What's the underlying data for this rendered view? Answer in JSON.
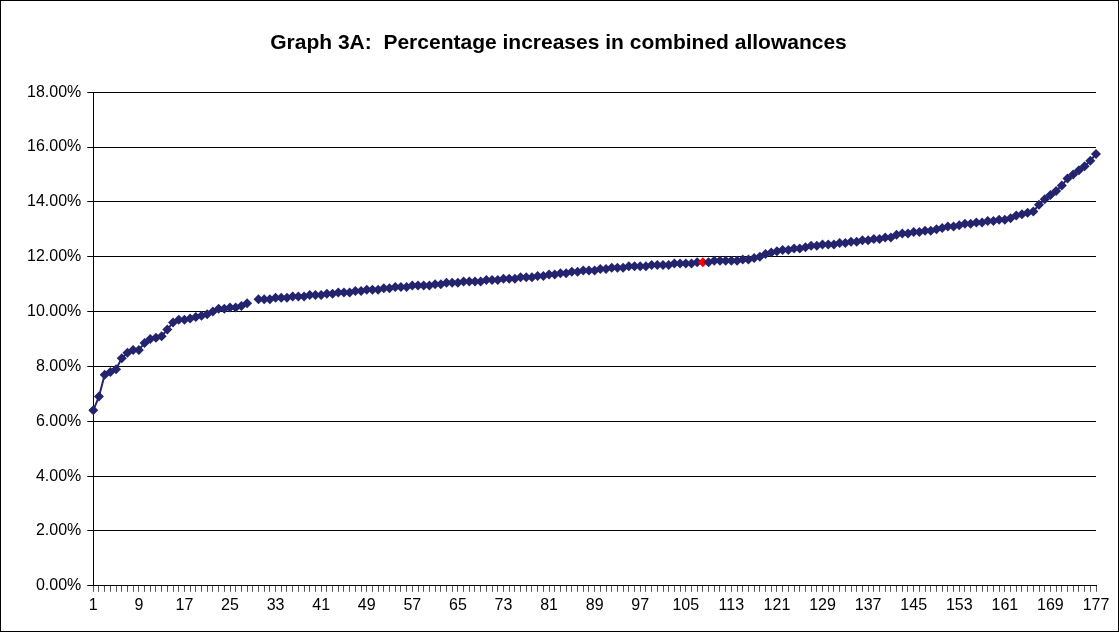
{
  "chart_data": {
    "type": "line",
    "title": "Graph 3A:  Percentage increases in combined allowances",
    "categories": [
      "1",
      null,
      null,
      null,
      null,
      null,
      null,
      null,
      "9",
      null,
      null,
      null,
      null,
      null,
      null,
      null,
      "17",
      null,
      null,
      null,
      null,
      null,
      null,
      null,
      "25",
      null,
      null,
      null,
      null,
      null,
      null,
      null,
      "33",
      null,
      null,
      null,
      null,
      null,
      null,
      null,
      "41",
      null,
      null,
      null,
      null,
      null,
      null,
      null,
      "49",
      null,
      null,
      null,
      null,
      null,
      null,
      null,
      "57",
      null,
      null,
      null,
      null,
      null,
      null,
      null,
      "65",
      null,
      null,
      null,
      null,
      null,
      null,
      null,
      "73",
      null,
      null,
      null,
      null,
      null,
      null,
      null,
      "81",
      null,
      null,
      null,
      null,
      null,
      null,
      null,
      "89",
      null,
      null,
      null,
      null,
      null,
      null,
      null,
      "97",
      null,
      null,
      null,
      null,
      null,
      null,
      null,
      "105",
      null,
      null,
      null,
      null,
      null,
      null,
      null,
      "113",
      null,
      null,
      null,
      null,
      null,
      null,
      null,
      "121",
      null,
      null,
      null,
      null,
      null,
      null,
      null,
      "129",
      null,
      null,
      null,
      null,
      null,
      null,
      null,
      "137",
      null,
      null,
      null,
      null,
      null,
      null,
      null,
      "145",
      null,
      null,
      null,
      null,
      null,
      null,
      null,
      "153",
      null,
      null,
      null,
      null,
      null,
      null,
      null,
      "161",
      null,
      null,
      null,
      null,
      null,
      null,
      null,
      "169",
      null,
      null,
      null,
      null,
      null,
      null,
      null,
      "177"
    ],
    "series": [
      {
        "color": "#24246e",
        "colors": [
          "#24246e",
          "#24246e",
          "#24246e",
          "#24246e",
          "#24246e",
          "#24246e",
          "#24246e",
          "#24246e",
          "#24246e",
          "#24246e",
          "#24246e",
          "#24246e",
          "#24246e",
          "#24246e",
          "#24246e",
          "#24246e",
          "#24246e",
          "#24246e",
          "#24246e",
          "#24246e",
          "#24246e",
          "#24246e",
          "#24246e",
          "#24246e",
          "#24246e",
          "#24246e",
          "#24246e",
          "#24246e",
          "#24246e",
          "#24246e",
          "#24246e",
          "#24246e",
          "#24246e",
          "#24246e",
          "#24246e",
          "#24246e",
          "#24246e",
          "#24246e",
          "#24246e",
          "#24246e",
          "#24246e",
          "#24246e",
          "#24246e",
          "#24246e",
          "#24246e",
          "#24246e",
          "#24246e",
          "#24246e",
          "#24246e",
          "#24246e",
          "#24246e",
          "#24246e",
          "#24246e",
          "#24246e",
          "#24246e",
          "#24246e",
          "#24246e",
          "#24246e",
          "#24246e",
          "#24246e",
          "#24246e",
          "#24246e",
          "#24246e",
          "#24246e",
          "#24246e",
          "#24246e",
          "#24246e",
          "#24246e",
          "#24246e",
          "#24246e",
          "#24246e",
          "#24246e",
          "#24246e",
          "#24246e",
          "#24246e",
          "#24246e",
          "#24246e",
          "#24246e",
          "#24246e",
          "#24246e",
          "#24246e",
          "#24246e",
          "#24246e",
          "#24246e",
          "#24246e",
          "#24246e",
          "#24246e",
          "#24246e",
          "#24246e",
          "#24246e",
          "#24246e",
          "#24246e",
          "#24246e",
          "#24246e",
          "#24246e",
          "#24246e",
          "#24246e",
          "#24246e",
          "#24246e",
          "#24246e",
          "#24246e",
          "#24246e",
          "#24246e",
          "#24246e",
          "#24246e",
          "#24246e",
          "#24246e",
          "#ff0000",
          "#24246e",
          "#24246e",
          "#24246e",
          "#24246e",
          "#24246e",
          "#24246e",
          "#24246e",
          "#24246e",
          "#24246e",
          "#24246e",
          "#24246e",
          "#24246e",
          "#24246e",
          "#24246e",
          "#24246e",
          "#24246e",
          "#24246e",
          "#24246e",
          "#24246e",
          "#24246e",
          "#24246e",
          "#24246e",
          "#24246e",
          "#24246e",
          "#24246e",
          "#24246e",
          "#24246e",
          "#24246e",
          "#24246e",
          "#24246e",
          "#24246e",
          "#24246e",
          "#24246e",
          "#24246e",
          "#24246e",
          "#24246e",
          "#24246e",
          "#24246e",
          "#24246e",
          "#24246e",
          "#24246e",
          "#24246e",
          "#24246e",
          "#24246e",
          "#24246e",
          "#24246e",
          "#24246e",
          "#24246e",
          "#24246e",
          "#24246e",
          "#24246e",
          "#24246e",
          "#24246e",
          "#24246e",
          "#24246e",
          "#24246e",
          "#24246e",
          "#24246e",
          "#24246e",
          "#24246e",
          "#24246e",
          "#24246e",
          "#24246e",
          "#24246e",
          "#24246e",
          "#24246e",
          "#24246e",
          "#24246e",
          "#24246e"
        ],
        "values": [
          6.4,
          6.9,
          7.7,
          7.8,
          7.9,
          8.3,
          8.5,
          8.6,
          8.6,
          8.85,
          9.0,
          9.05,
          9.1,
          9.35,
          9.6,
          9.7,
          9.7,
          9.75,
          9.8,
          9.85,
          9.9,
          10.0,
          10.1,
          10.1,
          10.15,
          10.15,
          10.2,
          10.3,
          null,
          10.45,
          10.45,
          10.45,
          10.5,
          10.5,
          10.5,
          10.55,
          10.55,
          10.55,
          10.6,
          10.6,
          10.6,
          10.65,
          10.65,
          10.7,
          10.7,
          10.7,
          10.75,
          10.75,
          10.8,
          10.8,
          10.8,
          10.85,
          10.85,
          10.9,
          10.9,
          10.9,
          10.95,
          10.95,
          10.95,
          10.95,
          11.0,
          11.0,
          11.05,
          11.05,
          11.05,
          11.1,
          11.1,
          11.1,
          11.1,
          11.15,
          11.15,
          11.15,
          11.2,
          11.2,
          11.2,
          11.25,
          11.25,
          11.25,
          11.3,
          11.3,
          11.35,
          11.35,
          11.4,
          11.4,
          11.45,
          11.45,
          11.5,
          11.5,
          11.5,
          11.55,
          11.55,
          11.6,
          11.6,
          11.6,
          11.65,
          11.65,
          11.65,
          11.65,
          11.7,
          11.7,
          11.7,
          11.7,
          11.75,
          11.75,
          11.75,
          11.75,
          11.8,
          11.8,
          11.8,
          11.85,
          11.85,
          11.85,
          11.85,
          11.85,
          11.9,
          11.9,
          11.95,
          12.0,
          12.1,
          12.15,
          12.2,
          12.25,
          12.25,
          12.3,
          12.3,
          12.35,
          12.4,
          12.4,
          12.45,
          12.45,
          12.45,
          12.5,
          12.5,
          12.55,
          12.55,
          12.6,
          12.6,
          12.65,
          12.65,
          12.7,
          12.7,
          12.8,
          12.85,
          12.85,
          12.9,
          12.9,
          12.95,
          12.95,
          13.0,
          13.05,
          13.1,
          13.1,
          13.15,
          13.2,
          13.2,
          13.25,
          13.25,
          13.3,
          13.3,
          13.35,
          13.35,
          13.4,
          13.5,
          13.55,
          13.6,
          13.65,
          13.9,
          14.1,
          14.25,
          14.4,
          14.6,
          14.85,
          15.0,
          15.15,
          15.3,
          15.5,
          15.75
        ]
      }
    ],
    "ylim": [
      0,
      18
    ],
    "yticks": [
      {
        "value": 0,
        "label": "0.00%"
      },
      {
        "value": 2,
        "label": "2.00%"
      },
      {
        "value": 4,
        "label": "4.00%"
      },
      {
        "value": 6,
        "label": "6.00%"
      },
      {
        "value": 8,
        "label": "8.00%"
      },
      {
        "value": 10,
        "label": "10.00%"
      },
      {
        "value": 12,
        "label": "12.00%"
      },
      {
        "value": 14,
        "label": "14.00%"
      },
      {
        "value": 16,
        "label": "16.00%"
      },
      {
        "value": 18,
        "label": "18.00%"
      }
    ],
    "grid": "y",
    "legend": false,
    "marker": "diamond",
    "line_style": "solid"
  }
}
